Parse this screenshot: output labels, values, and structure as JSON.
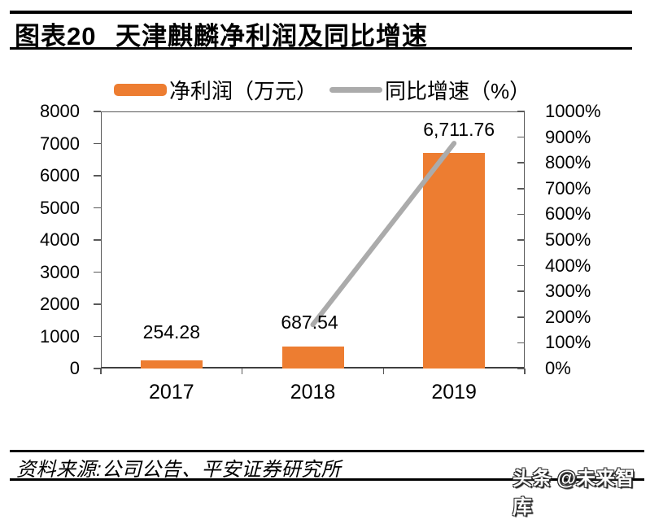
{
  "title": {
    "label": "图表20",
    "text": "天津麒麟净利润及同比增速"
  },
  "legend": [
    {
      "name": "净利润（万元）",
      "type": "bar",
      "color": "#ED7D31"
    },
    {
      "name": "同比增速（%）",
      "type": "line",
      "color": "#ABABAB"
    }
  ],
  "chart_data": {
    "type": "bar",
    "title": "天津麒麟净利润及同比增速",
    "categories": [
      "2017",
      "2018",
      "2019"
    ],
    "series": [
      {
        "name": "净利润（万元）",
        "type": "bar",
        "axis": "left",
        "color": "#ED7D31",
        "values": [
          254.28,
          687.54,
          6711.76
        ],
        "labels": [
          "254.28",
          "687.54",
          "6,711.76"
        ]
      },
      {
        "name": "同比增速（%）",
        "type": "line",
        "axis": "right",
        "color": "#ABABAB",
        "values": [
          null,
          170.4,
          876.2
        ]
      }
    ],
    "left_axis": {
      "min": 0,
      "max": 8000,
      "step": 1000,
      "labels": [
        "0",
        "1000",
        "2000",
        "3000",
        "4000",
        "5000",
        "6000",
        "7000",
        "8000"
      ]
    },
    "right_axis": {
      "min": 0,
      "max": 1000,
      "step": 100,
      "suffix": "%",
      "labels": [
        "0%",
        "100%",
        "200%",
        "300%",
        "400%",
        "500%",
        "600%",
        "700%",
        "800%",
        "900%",
        "1000%"
      ]
    },
    "grid": false,
    "legend_position": "top",
    "frame_color": "#595959"
  },
  "footer": {
    "source": "资料来源:公司公告、平安证券研究所",
    "watermark": "头条 @未来智库"
  }
}
